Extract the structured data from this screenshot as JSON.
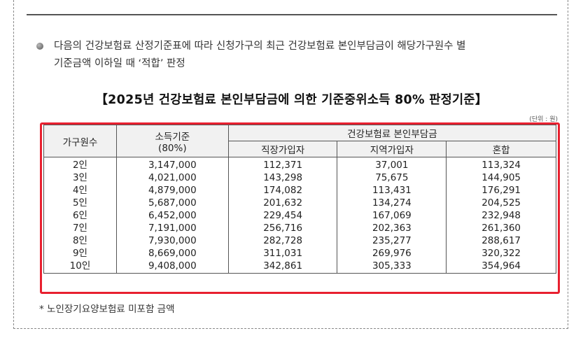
{
  "intro": {
    "bullet_line1": "다음의 건강보험료 산정기준표에 따라 신청가구의 최근 건강보험료 본인부담금이 해당가구원수 별",
    "bullet_line2": "기준금액 이하일 때 ‘적합’ 판정"
  },
  "table_title": "【2025년 건강보험료 본인부담금에 의한 기준중위소득 80% 판정기준】",
  "unit": "(단위 : 원)",
  "headers": {
    "household": "가구원수",
    "income_line1": "소득기준",
    "income_line2": "(80%)",
    "premium_group": "건강보험료 본인부담금",
    "employee": "직장가입자",
    "regional": "지역가입자",
    "mixed": "혼합"
  },
  "rows": [
    {
      "household": "2인",
      "income": "3,147,000",
      "employee": "112,371",
      "regional": "37,001",
      "mixed": "113,324"
    },
    {
      "household": "3인",
      "income": "4,021,000",
      "employee": "143,298",
      "regional": "75,675",
      "mixed": "144,905"
    },
    {
      "household": "4인",
      "income": "4,879,000",
      "employee": "174,082",
      "regional": "113,431",
      "mixed": "176,291"
    },
    {
      "household": "5인",
      "income": "5,687,000",
      "employee": "201,632",
      "regional": "134,274",
      "mixed": "204,525"
    },
    {
      "household": "6인",
      "income": "6,452,000",
      "employee": "229,454",
      "regional": "167,069",
      "mixed": "232,948"
    },
    {
      "household": "7인",
      "income": "7,191,000",
      "employee": "256,716",
      "regional": "202,363",
      "mixed": "261,360"
    },
    {
      "household": "8인",
      "income": "7,930,000",
      "employee": "282,728",
      "regional": "235,277",
      "mixed": "288,617"
    },
    {
      "household": "9인",
      "income": "8,669,000",
      "employee": "311,031",
      "regional": "269,976",
      "mixed": "320,322"
    },
    {
      "household": "10인",
      "income": "9,408,000",
      "employee": "342,861",
      "regional": "305,333",
      "mixed": "354,964"
    }
  ],
  "footnote": "* 노인장기요양보험료 미포함 금액",
  "colors": {
    "highlight": "#e8202f",
    "header_bg": "#f1f1f1"
  },
  "icons": {
    "bullet": "round-bullet-icon"
  }
}
